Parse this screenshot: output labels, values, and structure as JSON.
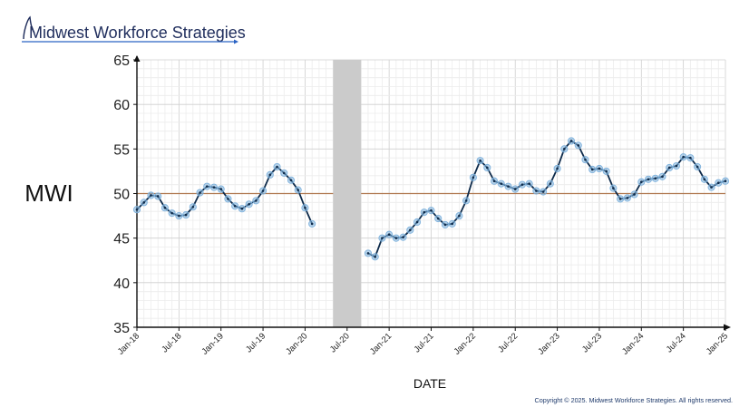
{
  "brand": {
    "name": "Midwest Workforce Strategies",
    "text_color": "#1f2d5c",
    "underline_color": "#2a63c4"
  },
  "copyright": "Copyright © 2025. Midwest Workforce Strategies. All rights reserved.",
  "chart_data": {
    "type": "line",
    "title": "",
    "ylabel": "MWI",
    "xlabel": "DATE",
    "ylim": [
      35,
      65
    ],
    "xlim": [
      "2018-01",
      "2025-01"
    ],
    "y_ticks": [
      35,
      40,
      45,
      50,
      55,
      60,
      65
    ],
    "x_ticks": [
      "Jan-18",
      "Jul-18",
      "Jan-19",
      "Jul-19",
      "Jan-20",
      "Jul-20",
      "Jan-21",
      "Jul-21",
      "Jan-22",
      "Jul-22",
      "Jan-23",
      "Jul-23",
      "Jan-24",
      "Jul-24",
      "Jan-25"
    ],
    "grid": true,
    "reference_line": {
      "value": 50,
      "color": "#b07850"
    },
    "shaded_region": {
      "from": "2020-05",
      "to": "2020-09",
      "color": "#cbcbcb"
    },
    "line_color": "#0d2a4a",
    "marker_color": "#7fb2dd",
    "series": [
      {
        "points": [
          [
            "2018-01",
            48.2
          ],
          [
            "2018-02",
            49.0
          ],
          [
            "2018-03",
            49.8
          ],
          [
            "2018-04",
            49.7
          ],
          [
            "2018-05",
            48.4
          ],
          [
            "2018-06",
            47.8
          ],
          [
            "2018-07",
            47.5
          ],
          [
            "2018-08",
            47.6
          ],
          [
            "2018-09",
            48.5
          ],
          [
            "2018-10",
            50.1
          ],
          [
            "2018-11",
            50.8
          ],
          [
            "2018-12",
            50.7
          ],
          [
            "2019-01",
            50.5
          ],
          [
            "2019-02",
            49.4
          ],
          [
            "2019-03",
            48.6
          ],
          [
            "2019-04",
            48.3
          ],
          [
            "2019-05",
            48.8
          ],
          [
            "2019-06",
            49.2
          ],
          [
            "2019-07",
            50.3
          ],
          [
            "2019-08",
            52.1
          ],
          [
            "2019-09",
            53.0
          ],
          [
            "2019-10",
            52.3
          ],
          [
            "2019-11",
            51.5
          ],
          [
            "2019-12",
            50.4
          ],
          [
            "2020-01",
            48.4
          ],
          [
            "2020-02",
            46.6
          ]
        ]
      },
      {
        "points": [
          [
            "2020-10",
            43.3
          ],
          [
            "2020-11",
            42.9
          ],
          [
            "2020-12",
            45.0
          ],
          [
            "2021-01",
            45.4
          ],
          [
            "2021-02",
            45.0
          ],
          [
            "2021-03",
            45.1
          ],
          [
            "2021-04",
            45.9
          ],
          [
            "2021-05",
            46.8
          ],
          [
            "2021-06",
            47.9
          ],
          [
            "2021-07",
            48.1
          ],
          [
            "2021-08",
            47.2
          ],
          [
            "2021-09",
            46.5
          ],
          [
            "2021-10",
            46.6
          ],
          [
            "2021-11",
            47.5
          ],
          [
            "2021-12",
            49.2
          ],
          [
            "2022-01",
            51.8
          ],
          [
            "2022-02",
            53.7
          ],
          [
            "2022-03",
            52.9
          ],
          [
            "2022-04",
            51.4
          ],
          [
            "2022-05",
            51.1
          ],
          [
            "2022-06",
            50.8
          ],
          [
            "2022-07",
            50.5
          ],
          [
            "2022-08",
            51.0
          ],
          [
            "2022-09",
            51.1
          ],
          [
            "2022-10",
            50.3
          ],
          [
            "2022-11",
            50.2
          ],
          [
            "2022-12",
            51.1
          ],
          [
            "2023-01",
            52.8
          ],
          [
            "2023-02",
            55.0
          ],
          [
            "2023-03",
            55.9
          ],
          [
            "2023-04",
            55.4
          ],
          [
            "2023-05",
            53.8
          ],
          [
            "2023-06",
            52.7
          ],
          [
            "2023-07",
            52.8
          ],
          [
            "2023-08",
            52.5
          ],
          [
            "2023-09",
            50.6
          ],
          [
            "2023-10",
            49.4
          ],
          [
            "2023-11",
            49.5
          ],
          [
            "2023-12",
            49.9
          ],
          [
            "2024-01",
            51.3
          ],
          [
            "2024-02",
            51.6
          ],
          [
            "2024-03",
            51.7
          ],
          [
            "2024-04",
            51.9
          ],
          [
            "2024-05",
            52.9
          ],
          [
            "2024-06",
            53.1
          ],
          [
            "2024-07",
            54.1
          ],
          [
            "2024-08",
            54.0
          ],
          [
            "2024-09",
            53.0
          ],
          [
            "2024-10",
            51.6
          ],
          [
            "2024-11",
            50.7
          ],
          [
            "2024-12",
            51.2
          ],
          [
            "2025-01",
            51.4
          ]
        ]
      }
    ]
  }
}
